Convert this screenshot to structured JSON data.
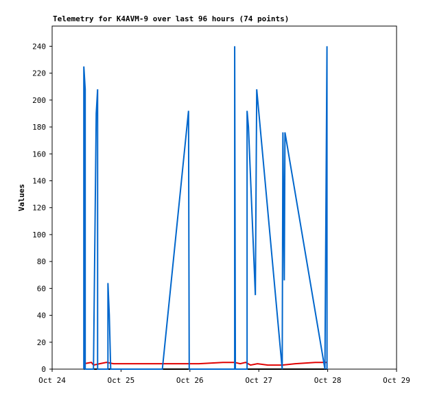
{
  "chart_data": {
    "type": "line",
    "title": "Telemetry for K4AVM-9 over last 96 hours (74 points)",
    "y_label": "Values",
    "xlim": [
      24,
      29
    ],
    "xticks": [
      {
        "value": 24,
        "label": "Oct 24"
      },
      {
        "value": 25,
        "label": "Oct 25"
      },
      {
        "value": 26,
        "label": "Oct 26"
      },
      {
        "value": 27,
        "label": "Oct 27"
      },
      {
        "value": 28,
        "label": "Oct 28"
      },
      {
        "value": 29,
        "label": "Oct 29"
      }
    ],
    "ylim": [
      0,
      255
    ],
    "yticks": [
      0,
      20,
      40,
      60,
      80,
      100,
      120,
      140,
      160,
      180,
      200,
      220,
      240
    ],
    "series": [
      {
        "color": "#000000",
        "x": [
          24.46,
          27.99
        ],
        "values": [
          0,
          0
        ]
      },
      {
        "color": "#e00000",
        "x": [
          24.46,
          24.57,
          24.6,
          24.69,
          24.79,
          24.89,
          26.13,
          26.48,
          26.65,
          26.73,
          26.81,
          26.88,
          26.98,
          27.13,
          27.34,
          27.53,
          27.82,
          27.99
        ],
        "values": [
          4,
          5,
          3,
          4,
          5,
          4,
          4,
          5,
          5,
          4,
          5,
          3,
          4,
          3,
          3,
          4,
          5,
          5
        ]
      },
      {
        "color": "#0066cc",
        "x": [
          24.46,
          24.46,
          24.48,
          24.48,
          24.6,
          24.64,
          24.66,
          24.66,
          24.81,
          24.81,
          24.83,
          24.85,
          25.6,
          25.98,
          25.99,
          26.65,
          26.65,
          26.66,
          26.83,
          26.83,
          26.85,
          26.95,
          26.97,
          27.34,
          27.35,
          27.37,
          27.38,
          27.96,
          27.99,
          27.99
        ],
        "values": [
          0,
          225,
          208,
          0,
          0,
          190,
          208,
          0,
          0,
          64,
          40,
          0,
          0,
          192,
          0,
          0,
          240,
          0,
          0,
          192,
          180,
          55,
          208,
          0,
          176,
          66,
          176,
          0,
          240,
          0
        ]
      }
    ]
  }
}
